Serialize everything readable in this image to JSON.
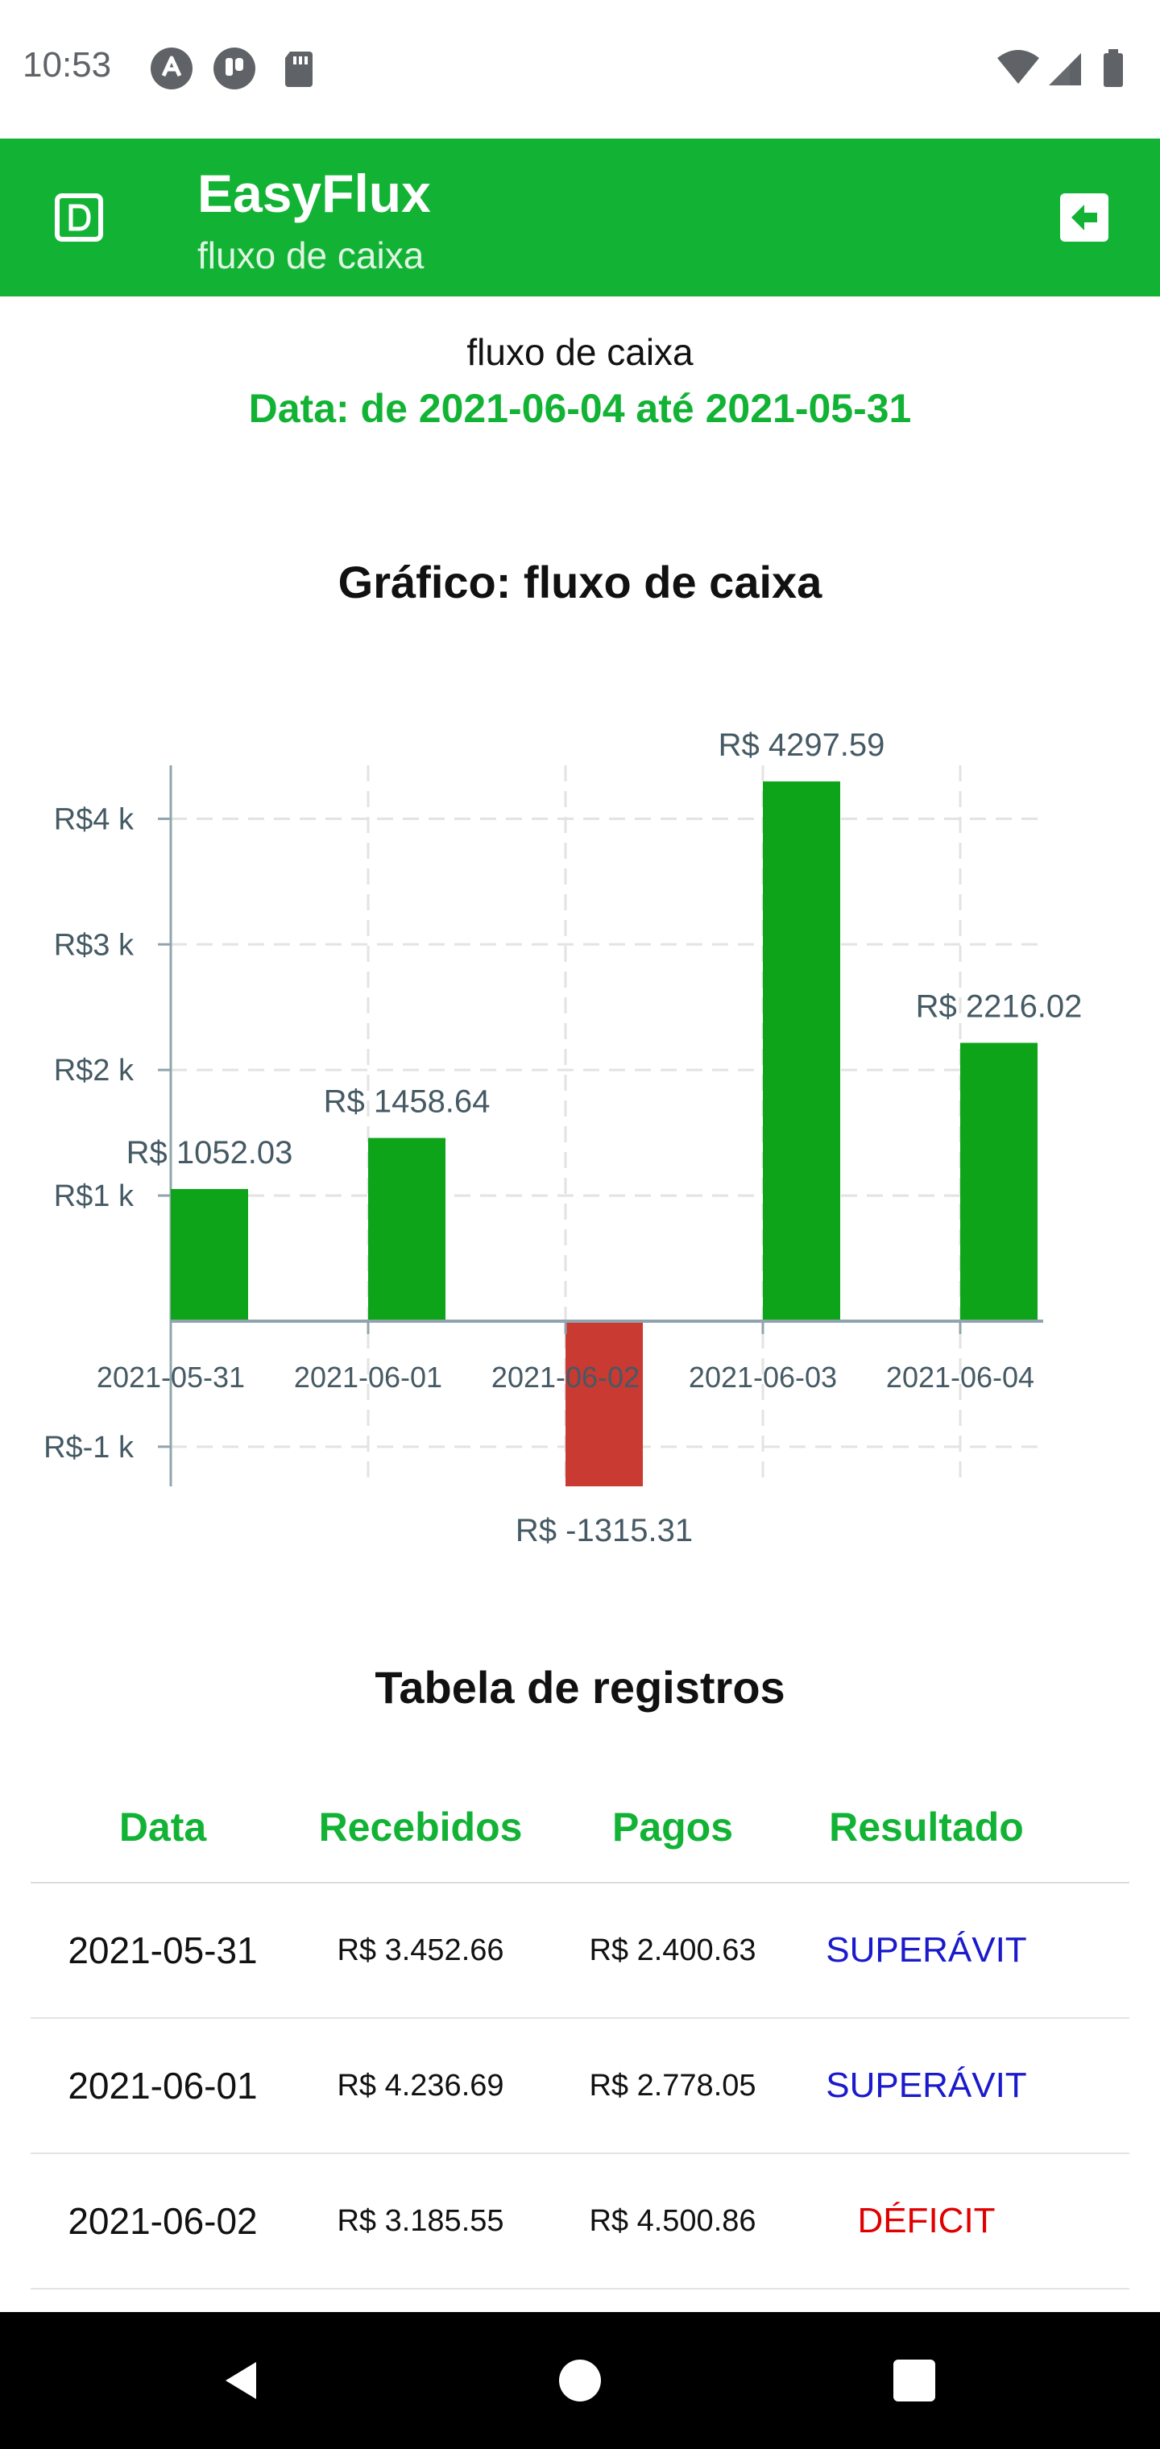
{
  "status_bar": {
    "time": "10:53",
    "icons": [
      "autofill-icon",
      "pocket-icon",
      "sd-card-icon",
      "wifi-icon",
      "signal-icon",
      "battery-icon"
    ]
  },
  "app_bar": {
    "title": "EasyFlux",
    "subtitle": "fluxo de caixa",
    "logo_icon": "document-d-icon",
    "action_icon": "logout-icon",
    "color": "#12b335"
  },
  "report": {
    "title": "fluxo de caixa",
    "date_range": "Data: de 2021-06-04 até 2021-05-31"
  },
  "chart_title": "Gráfico: fluxo de caixa",
  "chart_data": {
    "type": "bar",
    "categories": [
      "2021-05-31",
      "2021-06-01",
      "2021-06-02",
      "2021-06-03",
      "2021-06-04"
    ],
    "values": [
      1052.03,
      1458.64,
      -1315.31,
      4297.59,
      2216.02
    ],
    "data_labels": [
      "R$ 1052.03",
      "R$ 1458.64",
      "R$ -1315.31",
      "R$ 4297.59",
      "R$ 2216.02"
    ],
    "ylim": [
      -1315.31,
      4297.59
    ],
    "y_ticks": [
      -1000,
      1000,
      2000,
      3000,
      4000
    ],
    "y_tick_labels": [
      "R$-1 k",
      "R$1 k",
      "R$2 k",
      "R$3 k",
      "R$4 k"
    ],
    "grid": true,
    "positive_color": "#0ea41a",
    "negative_color": "#c93a32"
  },
  "table": {
    "title": "Tabela de registros",
    "headers": [
      "Data",
      "Recebidos",
      "Pagos",
      "Resultado"
    ],
    "rows": [
      {
        "date": "2021-05-31",
        "received": "R$ 3.452.66",
        "paid": "R$ 2.400.63",
        "result": "SUPERÁVIT"
      },
      {
        "date": "2021-06-01",
        "received": "R$ 4.236.69",
        "paid": "R$ 2.778.05",
        "result": "SUPERÁVIT"
      },
      {
        "date": "2021-06-02",
        "received": "R$ 3.185.55",
        "paid": "R$ 4.500.86",
        "result": "DÉFICIT"
      }
    ],
    "surplus_color": "#1a1acc",
    "deficit_color": "#e00000"
  },
  "nav_bar": {
    "icons": [
      "back-icon",
      "home-icon",
      "recents-icon"
    ]
  }
}
